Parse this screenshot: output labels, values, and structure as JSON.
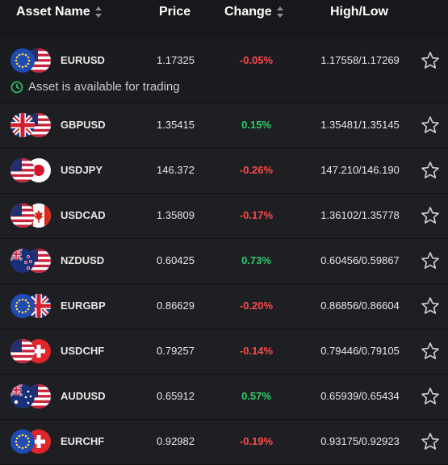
{
  "header": {
    "asset_name": "Asset Name",
    "price": "Price",
    "change": "Change",
    "high_low": "High/Low"
  },
  "availability_text": "Asset is available for trading",
  "rows": [
    {
      "symbol": "EURUSD",
      "price": "1.17325",
      "change": "-0.05%",
      "high_low": "1.17558/1.17269",
      "flags": [
        "eu",
        "us"
      ]
    },
    {
      "symbol": "GBPUSD",
      "price": "1.35415",
      "change": "0.15%",
      "high_low": "1.35481/1.35145",
      "flags": [
        "gb",
        "us"
      ]
    },
    {
      "symbol": "USDJPY",
      "price": "146.372",
      "change": "-0.26%",
      "high_low": "147.210/146.190",
      "flags": [
        "us",
        "jp"
      ]
    },
    {
      "symbol": "USDCAD",
      "price": "1.35809",
      "change": "-0.17%",
      "high_low": "1.36102/1.35778",
      "flags": [
        "us",
        "ca"
      ]
    },
    {
      "symbol": "NZDUSD",
      "price": "0.60425",
      "change": "0.73%",
      "high_low": "0.60456/0.59867",
      "flags": [
        "nz",
        "us"
      ]
    },
    {
      "symbol": "EURGBP",
      "price": "0.86629",
      "change": "-0.20%",
      "high_low": "0.86856/0.86604",
      "flags": [
        "eu",
        "gb"
      ]
    },
    {
      "symbol": "USDCHF",
      "price": "0.79257",
      "change": "-0.14%",
      "high_low": "0.79446/0.79105",
      "flags": [
        "us",
        "ch"
      ]
    },
    {
      "symbol": "AUDUSD",
      "price": "0.65912",
      "change": "0.57%",
      "high_low": "0.65939/0.65434",
      "flags": [
        "au",
        "us"
      ]
    },
    {
      "symbol": "EURCHF",
      "price": "0.92982",
      "change": "-0.19%",
      "high_low": "0.93175/0.92923",
      "flags": [
        "eu",
        "ch"
      ]
    }
  ],
  "colors": {
    "negative": "#ff4b4b",
    "positive": "#2ecc6a",
    "available": "#2ecc6a"
  },
  "icons": {
    "favorite": "star-outline-icon",
    "sort": "sort-updown-icon",
    "availability": "clock-icon"
  }
}
